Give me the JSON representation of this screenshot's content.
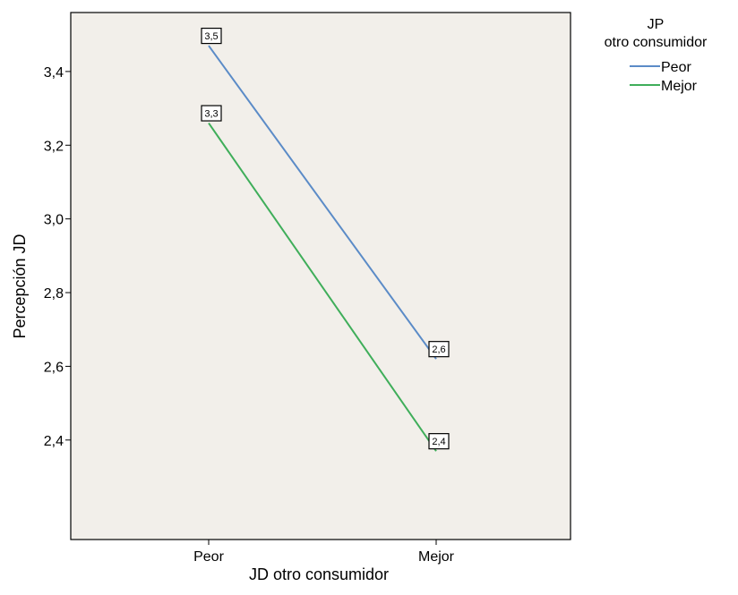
{
  "chart_data": {
    "type": "line",
    "title": "",
    "xlabel": "JD otro consumidor",
    "ylabel": "Percepción JD",
    "categories": [
      "Peor",
      "Mejor"
    ],
    "series": [
      {
        "name": "Peor",
        "values": [
          3.47,
          2.62
        ],
        "labels": [
          "3,5",
          "2,6"
        ],
        "color": "#5b8bc7"
      },
      {
        "name": "Mejor",
        "values": [
          3.26,
          2.37
        ],
        "labels": [
          "3,3",
          "2,4"
        ],
        "color": "#3fae5a"
      }
    ],
    "yticks": [
      {
        "value": 2.4,
        "label": "2,4"
      },
      {
        "value": 2.6,
        "label": "2,6"
      },
      {
        "value": 2.8,
        "label": "2,8"
      },
      {
        "value": 3.0,
        "label": "3,0"
      },
      {
        "value": 3.2,
        "label": "3,2"
      },
      {
        "value": 3.4,
        "label": "3,4"
      }
    ],
    "ylim": [
      2.13,
      3.56
    ],
    "legend": {
      "title_line1": "JP",
      "title_line2": "otro consumidor",
      "placement": "top-right-outside"
    },
    "grid": false,
    "background_color": "#f2efea"
  }
}
